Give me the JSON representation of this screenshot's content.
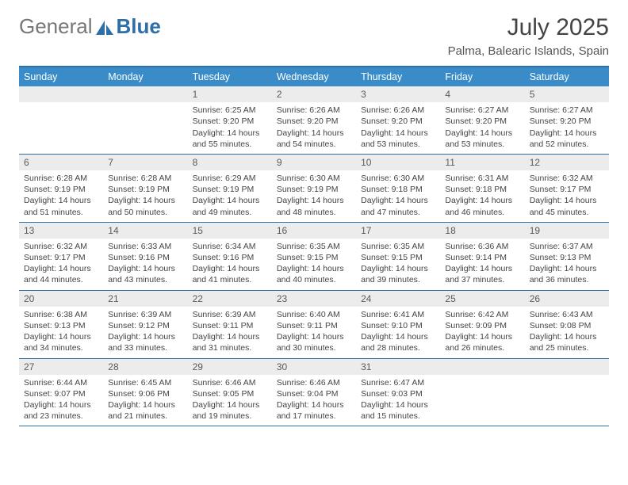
{
  "brand": {
    "part1": "General",
    "part2": "Blue"
  },
  "title": {
    "month": "July 2025",
    "location": "Palma, Balearic Islands, Spain"
  },
  "dayHeaders": [
    "Sunday",
    "Monday",
    "Tuesday",
    "Wednesday",
    "Thursday",
    "Friday",
    "Saturday"
  ],
  "colors": {
    "headerBar": "#3a8cc8",
    "borderTop": "#2f6fa8",
    "dayNumBg": "#ececec"
  },
  "weeks": [
    [
      {
        "blank": true
      },
      {
        "blank": true
      },
      {
        "n": "1",
        "sr": "6:25 AM",
        "ss": "9:20 PM",
        "dl": "14 hours and 55 minutes."
      },
      {
        "n": "2",
        "sr": "6:26 AM",
        "ss": "9:20 PM",
        "dl": "14 hours and 54 minutes."
      },
      {
        "n": "3",
        "sr": "6:26 AM",
        "ss": "9:20 PM",
        "dl": "14 hours and 53 minutes."
      },
      {
        "n": "4",
        "sr": "6:27 AM",
        "ss": "9:20 PM",
        "dl": "14 hours and 53 minutes."
      },
      {
        "n": "5",
        "sr": "6:27 AM",
        "ss": "9:20 PM",
        "dl": "14 hours and 52 minutes."
      }
    ],
    [
      {
        "n": "6",
        "sr": "6:28 AM",
        "ss": "9:19 PM",
        "dl": "14 hours and 51 minutes."
      },
      {
        "n": "7",
        "sr": "6:28 AM",
        "ss": "9:19 PM",
        "dl": "14 hours and 50 minutes."
      },
      {
        "n": "8",
        "sr": "6:29 AM",
        "ss": "9:19 PM",
        "dl": "14 hours and 49 minutes."
      },
      {
        "n": "9",
        "sr": "6:30 AM",
        "ss": "9:19 PM",
        "dl": "14 hours and 48 minutes."
      },
      {
        "n": "10",
        "sr": "6:30 AM",
        "ss": "9:18 PM",
        "dl": "14 hours and 47 minutes."
      },
      {
        "n": "11",
        "sr": "6:31 AM",
        "ss": "9:18 PM",
        "dl": "14 hours and 46 minutes."
      },
      {
        "n": "12",
        "sr": "6:32 AM",
        "ss": "9:17 PM",
        "dl": "14 hours and 45 minutes."
      }
    ],
    [
      {
        "n": "13",
        "sr": "6:32 AM",
        "ss": "9:17 PM",
        "dl": "14 hours and 44 minutes."
      },
      {
        "n": "14",
        "sr": "6:33 AM",
        "ss": "9:16 PM",
        "dl": "14 hours and 43 minutes."
      },
      {
        "n": "15",
        "sr": "6:34 AM",
        "ss": "9:16 PM",
        "dl": "14 hours and 41 minutes."
      },
      {
        "n": "16",
        "sr": "6:35 AM",
        "ss": "9:15 PM",
        "dl": "14 hours and 40 minutes."
      },
      {
        "n": "17",
        "sr": "6:35 AM",
        "ss": "9:15 PM",
        "dl": "14 hours and 39 minutes."
      },
      {
        "n": "18",
        "sr": "6:36 AM",
        "ss": "9:14 PM",
        "dl": "14 hours and 37 minutes."
      },
      {
        "n": "19",
        "sr": "6:37 AM",
        "ss": "9:13 PM",
        "dl": "14 hours and 36 minutes."
      }
    ],
    [
      {
        "n": "20",
        "sr": "6:38 AM",
        "ss": "9:13 PM",
        "dl": "14 hours and 34 minutes."
      },
      {
        "n": "21",
        "sr": "6:39 AM",
        "ss": "9:12 PM",
        "dl": "14 hours and 33 minutes."
      },
      {
        "n": "22",
        "sr": "6:39 AM",
        "ss": "9:11 PM",
        "dl": "14 hours and 31 minutes."
      },
      {
        "n": "23",
        "sr": "6:40 AM",
        "ss": "9:11 PM",
        "dl": "14 hours and 30 minutes."
      },
      {
        "n": "24",
        "sr": "6:41 AM",
        "ss": "9:10 PM",
        "dl": "14 hours and 28 minutes."
      },
      {
        "n": "25",
        "sr": "6:42 AM",
        "ss": "9:09 PM",
        "dl": "14 hours and 26 minutes."
      },
      {
        "n": "26",
        "sr": "6:43 AM",
        "ss": "9:08 PM",
        "dl": "14 hours and 25 minutes."
      }
    ],
    [
      {
        "n": "27",
        "sr": "6:44 AM",
        "ss": "9:07 PM",
        "dl": "14 hours and 23 minutes."
      },
      {
        "n": "28",
        "sr": "6:45 AM",
        "ss": "9:06 PM",
        "dl": "14 hours and 21 minutes."
      },
      {
        "n": "29",
        "sr": "6:46 AM",
        "ss": "9:05 PM",
        "dl": "14 hours and 19 minutes."
      },
      {
        "n": "30",
        "sr": "6:46 AM",
        "ss": "9:04 PM",
        "dl": "14 hours and 17 minutes."
      },
      {
        "n": "31",
        "sr": "6:47 AM",
        "ss": "9:03 PM",
        "dl": "14 hours and 15 minutes."
      },
      {
        "blank": true
      },
      {
        "blank": true
      }
    ]
  ],
  "labels": {
    "sunrise": "Sunrise:",
    "sunset": "Sunset:",
    "daylight": "Daylight:"
  }
}
